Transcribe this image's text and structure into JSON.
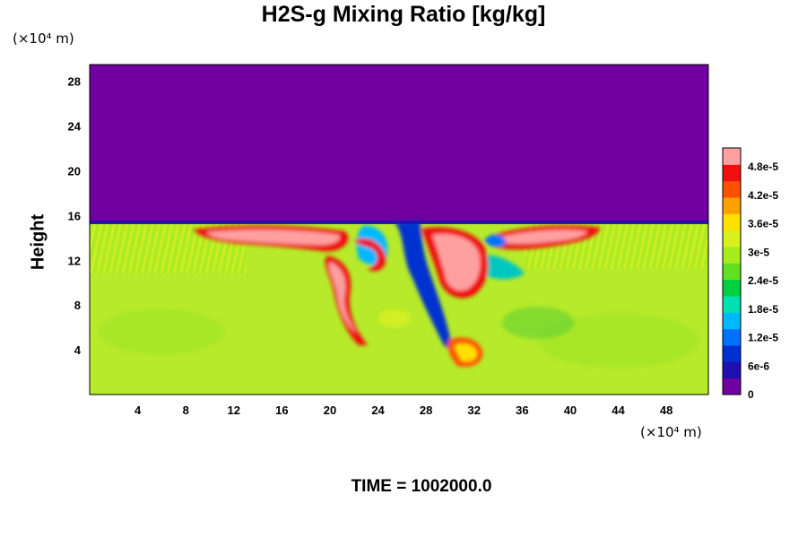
{
  "chart_data": {
    "type": "heatmap",
    "title": "H2S-g Mixing Ratio [kg/kg]",
    "x_unit": "(×10⁴ m)",
    "y_unit": "(×10⁴ m)",
    "ylabel": "Height",
    "xlabel": "",
    "xlim": [
      0,
      51.5
    ],
    "ylim": [
      0,
      29.5
    ],
    "x_ticks": [
      "4",
      "8",
      "12",
      "16",
      "20",
      "24",
      "28",
      "32",
      "36",
      "40",
      "44",
      "48"
    ],
    "y_ticks": [
      "4",
      "8",
      "12",
      "16",
      "20",
      "24",
      "28"
    ],
    "colorbar": {
      "range": [
        0,
        5.2e-05
      ],
      "tick_values": [
        0,
        6e-06,
        1.2e-05,
        1.8e-05,
        2.4e-05,
        3e-05,
        3.6e-05,
        4.2e-05,
        4.8e-05
      ],
      "tick_labels": [
        "0",
        "6e-6",
        "1.2e-5",
        "1.8e-5",
        "2.4e-5",
        "3e-5",
        "3.6e-5",
        "4.2e-5",
        "4.8e-5"
      ],
      "colors": [
        "#7000a0",
        "#2010b0",
        "#0030d0",
        "#0070ff",
        "#00b8ff",
        "#00e0b0",
        "#00d040",
        "#60e020",
        "#a8ec20",
        "#d8f020",
        "#ffe000",
        "#ffa000",
        "#ff5000",
        "#f01010",
        "#ffa0a0"
      ]
    },
    "grid": false,
    "legend": "right (colorbar)",
    "time_label": "TIME = 1002000.0"
  }
}
